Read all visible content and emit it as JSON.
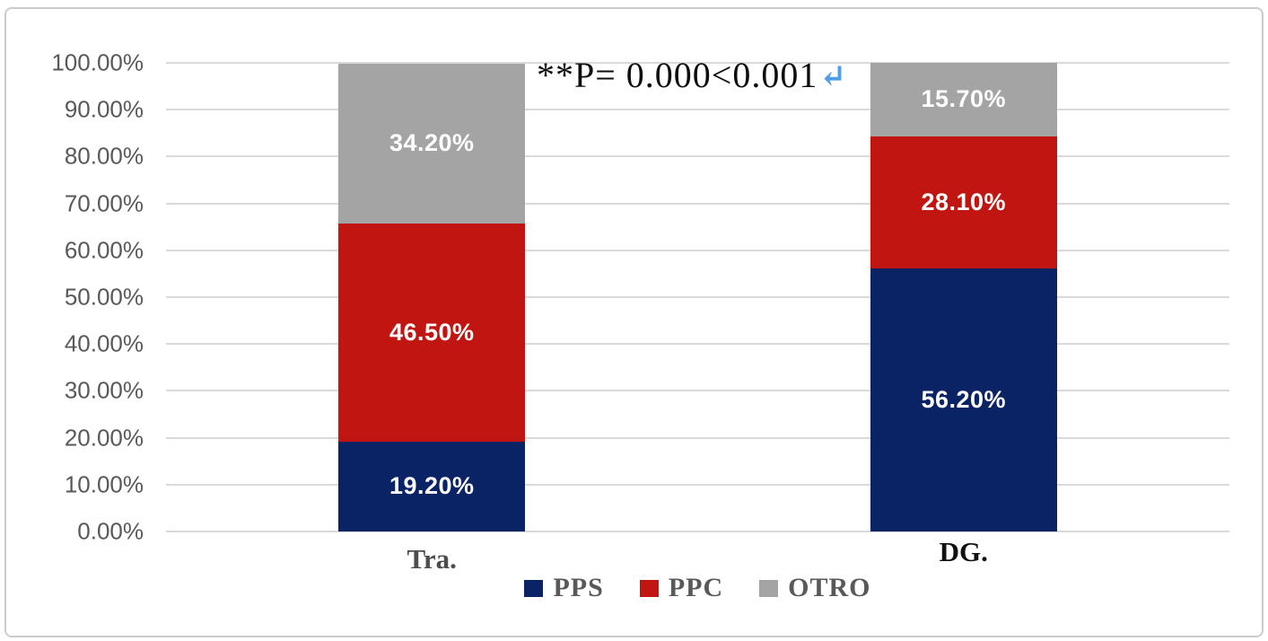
{
  "chart_data": {
    "type": "bar",
    "stacked": true,
    "title": "",
    "xlabel": "",
    "ylabel": "",
    "categories": [
      "Tra.",
      "DG."
    ],
    "category_label_colors": [
      "#4d4d4d",
      "#111111"
    ],
    "series": [
      {
        "name": "PPS",
        "color": "#0a2365",
        "values": [
          19.2,
          56.2
        ],
        "labels": [
          "19.20%",
          "56.20%"
        ]
      },
      {
        "name": "PPC",
        "color": "#c11511",
        "values": [
          46.5,
          28.1
        ],
        "labels": [
          "46.50%",
          "28.10%"
        ]
      },
      {
        "name": "OTRO",
        "color": "#a4a4a4",
        "values": [
          34.2,
          15.7
        ],
        "labels": [
          "34.20%",
          "15.70%"
        ]
      }
    ],
    "ylim": [
      0,
      100
    ],
    "y_ticks": [
      "0.00%",
      "10.00%",
      "20.00%",
      "30.00%",
      "40.00%",
      "50.00%",
      "60.00%",
      "70.00%",
      "80.00%",
      "90.00%",
      "100.00%"
    ],
    "grid": true,
    "gridline_color": "#d9d9d9",
    "legend_position": "bottom",
    "annotation": {
      "text": "**P= 0.000<0.001",
      "return_mark": "↵",
      "return_mark_color": "#4f9fe8"
    }
  }
}
